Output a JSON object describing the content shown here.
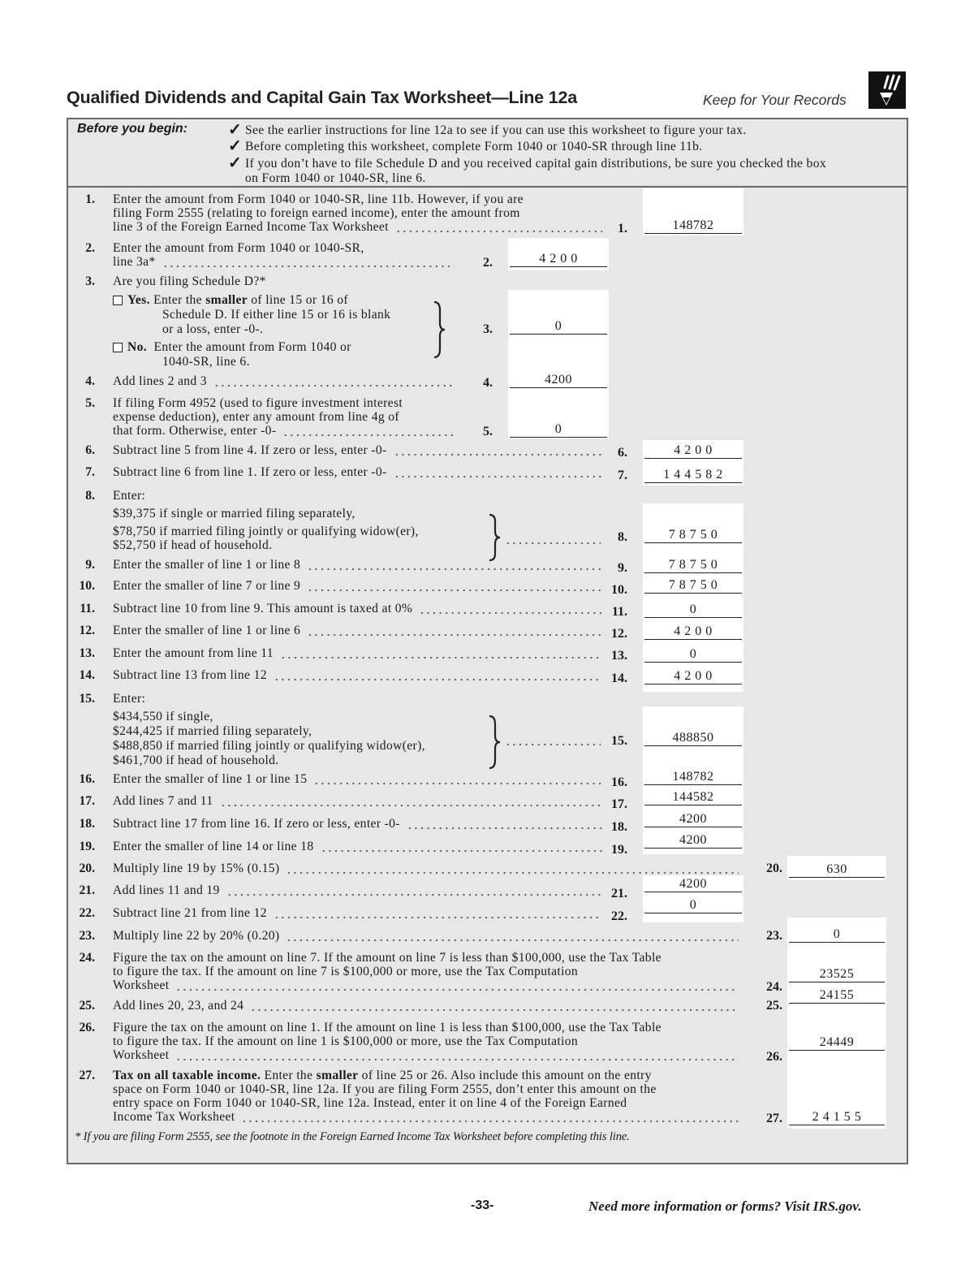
{
  "header": {
    "title": "Qualified Dividends and Capital Gain Tax Worksheet—Line 12a",
    "keep_records": "Keep for Your Records",
    "keep_icon": "pencil-in-black-box-icon"
  },
  "before_you_begin": {
    "label": "Before you begin:",
    "check_icon": "checkmark-icon",
    "items": [
      "See the earlier instructions for line 12a to see if you can use this worksheet to figure your tax.",
      "Before completing this worksheet, complete Form 1040 or 1040-SR through line 11b.",
      "If you don’t have to file Schedule D and you received capital gain distributions, be sure you checked the box",
      "on Form 1040 or 1040-SR, line 6."
    ]
  },
  "lines": [
    {
      "num": "1.",
      "rows": [
        "Enter the amount from Form 1040 or 1040-SR, line 11b. However, if you are",
        "filing Form 2555 (relating to foreign earned income), enter the amount from",
        "line 3 of the Foreign Earned Income Tax Worksheet"
      ],
      "label": "1.",
      "value": "148782"
    },
    {
      "num": "2.",
      "rows": [
        "Enter the amount from Form 1040 or 1040-SR,",
        "line 3a*"
      ],
      "label": "2.",
      "value": "4 2 0 0"
    },
    {
      "num": "3.",
      "rows": [
        [
          {
            "t": "Are you filing Schedule D?*"
          }
        ],
        [
          {
            "box": "checkbox-yes"
          },
          {
            "b": "Yes."
          },
          {
            "t": " Enter the "
          },
          {
            "b": "smaller"
          },
          {
            "t": " of line 15 or 16 of"
          }
        ],
        [
          {
            "t": "Schedule D. If either line 15 or 16 is blank"
          }
        ],
        [
          {
            "t": "or a loss, enter -0-."
          }
        ],
        [
          {
            "box": "checkbox-no"
          },
          {
            "b": "No."
          },
          {
            "t": "  Enter the amount from Form 1040 or"
          }
        ],
        [
          {
            "t": "1040-SR, line 6."
          }
        ]
      ],
      "label": "3.",
      "value": "0"
    },
    {
      "num": "4.",
      "rows": [
        "Add lines 2 and 3"
      ],
      "label": "4.",
      "value": "4200"
    },
    {
      "num": "5.",
      "rows": [
        "If filing Form 4952 (used to figure investment interest",
        "expense deduction), enter any amount from line 4g of",
        "that form. Otherwise, enter -0-"
      ],
      "label": "5.",
      "value": "0"
    },
    {
      "num": "6.",
      "rows": [
        "Subtract line 5 from line 4. If zero or less, enter -0-"
      ],
      "label": "6.",
      "value": "4 2 0 0"
    },
    {
      "num": "7.",
      "rows": [
        "Subtract line 6 from line 1. If zero or less, enter -0-"
      ],
      "label": "7.",
      "value": "1 4 4 5 8 2"
    },
    {
      "num": "8.",
      "rows": [
        "Enter:",
        "$39,375 if single or married filing separately,",
        "$78,750 if married filing jointly or qualifying widow(er),",
        "$52,750 if head of household."
      ],
      "label": "8.",
      "value": "7 8 7 5 0"
    },
    {
      "num": "9.",
      "rows": [
        "Enter the smaller of line 1 or line 8"
      ],
      "label": "9.",
      "value": "7 8 7 5 0"
    },
    {
      "num": "10.",
      "rows": [
        "Enter the smaller of line 7 or line 9"
      ],
      "label": "10.",
      "value": "7 8 7 5 0"
    },
    {
      "num": "11.",
      "rows": [
        "Subtract line 10 from line 9. This amount is taxed at 0%"
      ],
      "label": "11.",
      "value": "0"
    },
    {
      "num": "12.",
      "rows": [
        "Enter the smaller of line 1 or line 6"
      ],
      "label": "12.",
      "value": "4 2 0 0"
    },
    {
      "num": "13.",
      "rows": [
        "Enter the amount from line 11"
      ],
      "label": "13.",
      "value": "0"
    },
    {
      "num": "14.",
      "rows": [
        "Subtract line 13 from line 12"
      ],
      "label": "14.",
      "value": "4 2 0 0"
    },
    {
      "num": "15.",
      "rows": [
        "Enter:",
        "$434,550 if single,",
        "$244,425 if married filing separately,",
        "$488,850 if married filing jointly or qualifying widow(er),",
        "$461,700 if head of household."
      ],
      "label": "15.",
      "value": "488850"
    },
    {
      "num": "16.",
      "rows": [
        "Enter the smaller of line 1 or line 15"
      ],
      "label": "16.",
      "value": "148782"
    },
    {
      "num": "17.",
      "rows": [
        "Add lines 7 and 11"
      ],
      "label": "17.",
      "value": "144582"
    },
    {
      "num": "18.",
      "rows": [
        "Subtract line 17 from line 16. If zero or less, enter -0-"
      ],
      "label": "18.",
      "value": "4200"
    },
    {
      "num": "19.",
      "rows": [
        "Enter the smaller of line 14 or line 18"
      ],
      "label": "19.",
      "value": "4200"
    },
    {
      "num": "20.",
      "rows": [
        "Multiply line 19 by 15% (0.15)"
      ],
      "label": "20.",
      "value": "630"
    },
    {
      "num": "21.",
      "rows": [
        "Add lines 11 and 19"
      ],
      "label": "21.",
      "value": "4200"
    },
    {
      "num": "22.",
      "rows": [
        "Subtract line 21 from line 12"
      ],
      "label": "22.",
      "value": "0"
    },
    {
      "num": "23.",
      "rows": [
        "Multiply line 22 by 20% (0.20)"
      ],
      "label": "23.",
      "value": "0"
    },
    {
      "num": "24.",
      "rows": [
        "Figure the tax on the amount on line 7. If the amount on line 7 is less than $100,000, use the Tax Table",
        "to figure the tax. If the amount on line 7 is $100,000 or more, use the Tax Computation",
        "Worksheet"
      ],
      "label": "24.",
      "value": "23525"
    },
    {
      "num": "25.",
      "rows": [
        "Add lines 20, 23, and 24"
      ],
      "label": "25.",
      "value": "24155"
    },
    {
      "num": "26.",
      "rows": [
        "Figure the tax on the amount on line 1. If the amount on line 1 is less than $100,000, use the Tax Table",
        "to figure the tax. If the amount on line 1 is $100,000 or more, use the Tax Computation",
        "Worksheet"
      ],
      "label": "26.",
      "value": "24449"
    },
    {
      "num": "27.",
      "rows": [
        [
          {
            "b": "Tax on all taxable income."
          },
          {
            "t": " Enter the "
          },
          {
            "b": "smaller"
          },
          {
            "t": " of line 25 or 26. Also include this amount on the entry"
          }
        ],
        [
          {
            "t": "space on Form 1040 or 1040-SR, line 12a. If you are filing Form 2555, don’t enter this amount on the"
          }
        ],
        [
          {
            "t": "entry space on Form 1040 or 1040-SR, line 12a. Instead, enter it on line 4 of the Foreign Earned"
          }
        ],
        [
          {
            "t": "Income Tax Worksheet"
          }
        ]
      ],
      "label": "27.",
      "value": "2 4 1 5 5"
    }
  ],
  "footnote": "* If you are filing Form 2555, see the footnote in the Foreign Earned Income Tax Worksheet before completing this line.",
  "footer": {
    "page": "-33-",
    "more_info": "Need more information or forms? Visit IRS.gov."
  }
}
